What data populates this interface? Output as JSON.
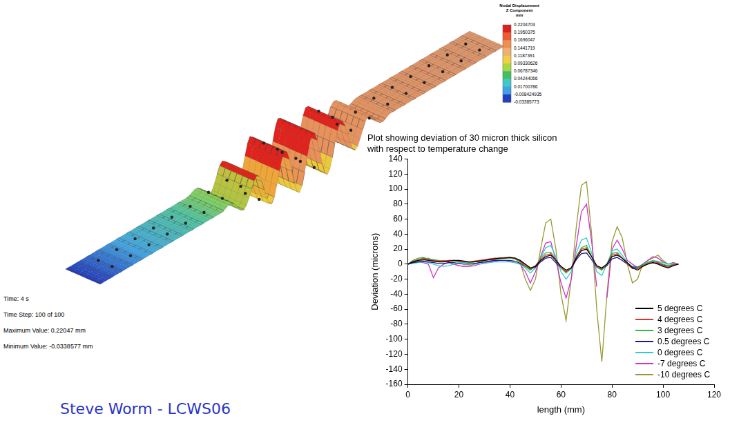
{
  "chart_data": {
    "type": "line",
    "title": "Plot showing deviation of 30 micron thick silicon with respect to temperature change",
    "x_label": "length (mm)",
    "y_label": "Deviation (microns)",
    "x": [
      0,
      2,
      4,
      6,
      8,
      10,
      12,
      14,
      16,
      18,
      20,
      22,
      24,
      26,
      28,
      30,
      32,
      34,
      36,
      38,
      40,
      42,
      44,
      46,
      48,
      50,
      52,
      54,
      56,
      58,
      60,
      62,
      64,
      66,
      68,
      70,
      72,
      74,
      76,
      78,
      80,
      82,
      84,
      86,
      88,
      90,
      92,
      94,
      96,
      98,
      100,
      102,
      104,
      106
    ],
    "series": [
      {
        "name": "5 degrees C",
        "color": "#000000",
        "values": [
          0,
          3,
          5,
          6,
          5,
          4,
          3,
          3,
          4,
          5,
          5,
          4,
          3,
          3,
          4,
          5,
          6,
          7,
          8,
          8,
          9,
          8,
          5,
          0,
          -5,
          -3,
          5,
          10,
          12,
          5,
          -3,
          -8,
          -5,
          8,
          18,
          20,
          10,
          -2,
          -5,
          0,
          10,
          12,
          8,
          2,
          -5,
          -8,
          -3,
          0,
          2,
          0,
          -3,
          -5,
          -2,
          0
        ]
      },
      {
        "name": "4 degrees C",
        "color": "#e03030",
        "values": [
          0,
          4,
          6,
          8,
          6,
          5,
          4,
          4,
          5,
          5,
          4,
          3,
          3,
          4,
          5,
          6,
          7,
          8,
          8,
          9,
          9,
          8,
          4,
          -2,
          -6,
          -2,
          6,
          12,
          14,
          6,
          -4,
          -10,
          -5,
          10,
          20,
          22,
          10,
          -3,
          -6,
          0,
          12,
          14,
          8,
          0,
          -6,
          -6,
          -2,
          1,
          3,
          2,
          -2,
          -4,
          -1,
          0
        ]
      },
      {
        "name": "3 degrees C",
        "color": "#33bb33",
        "values": [
          0,
          5,
          8,
          9,
          7,
          6,
          5,
          4,
          4,
          4,
          3,
          3,
          2,
          3,
          4,
          5,
          6,
          7,
          8,
          8,
          8,
          7,
          3,
          -3,
          -8,
          -3,
          8,
          15,
          16,
          6,
          -5,
          -12,
          -6,
          10,
          22,
          25,
          10,
          -4,
          -8,
          0,
          14,
          16,
          8,
          0,
          -5,
          -5,
          -1,
          2,
          4,
          3,
          0,
          -2,
          0,
          0
        ]
      },
      {
        "name": "0.5 degrees C",
        "color": "#1a1a8c",
        "values": [
          0,
          2,
          3,
          4,
          3,
          2,
          1,
          1,
          2,
          2,
          1,
          0,
          0,
          1,
          2,
          3,
          4,
          5,
          5,
          5,
          5,
          4,
          1,
          -3,
          -7,
          -4,
          3,
          8,
          9,
          2,
          -5,
          -10,
          -6,
          6,
          14,
          15,
          6,
          -4,
          -7,
          -2,
          7,
          9,
          5,
          0,
          -4,
          -4,
          -1,
          1,
          2,
          1,
          -1,
          -2,
          -1,
          0
        ]
      },
      {
        "name": "0 degrees C",
        "color": "#33cccc",
        "values": [
          0,
          1,
          2,
          3,
          2,
          0,
          -2,
          -3,
          -2,
          0,
          2,
          2,
          1,
          0,
          0,
          1,
          2,
          3,
          3,
          3,
          3,
          2,
          0,
          -5,
          -12,
          -5,
          8,
          22,
          25,
          10,
          -10,
          -20,
          -10,
          15,
          32,
          35,
          15,
          -10,
          -15,
          0,
          18,
          20,
          12,
          2,
          -3,
          -5,
          0,
          3,
          5,
          4,
          2,
          0,
          1,
          0
        ]
      },
      {
        "name": "-7 degrees C",
        "color": "#cc33cc",
        "values": [
          0,
          2,
          3,
          2,
          0,
          -18,
          -5,
          0,
          2,
          0,
          -2,
          -3,
          -3,
          -2,
          0,
          2,
          3,
          4,
          5,
          5,
          4,
          2,
          0,
          -10,
          -25,
          -10,
          10,
          28,
          30,
          5,
          -25,
          -45,
          -20,
          25,
          70,
          80,
          30,
          -30,
          null,
          -45,
          20,
          32,
          20,
          5,
          0,
          -5,
          0,
          5,
          10,
          8,
          3,
          0,
          2,
          0
        ]
      },
      {
        "name": "-10 degrees C",
        "color": "#999933",
        "values": [
          0,
          2,
          4,
          6,
          8,
          5,
          3,
          5,
          3,
          0,
          -2,
          -3,
          -2,
          0,
          2,
          3,
          4,
          6,
          7,
          8,
          8,
          7,
          2,
          -20,
          -35,
          -20,
          20,
          55,
          60,
          20,
          -40,
          -75,
          -20,
          50,
          105,
          110,
          40,
          -60,
          -130,
          -40,
          30,
          50,
          35,
          0,
          -25,
          -20,
          0,
          5,
          8,
          12,
          5,
          0,
          2,
          0
        ]
      }
    ],
    "xlim": [
      0,
      120
    ],
    "xticks": [
      0,
      20,
      40,
      60,
      80,
      100,
      120
    ],
    "ylim": [
      -160,
      140
    ],
    "yticks": [
      -160,
      -140,
      -120,
      -100,
      -80,
      -60,
      -40,
      -20,
      0,
      20,
      40,
      60,
      80,
      100,
      120,
      140
    ],
    "grid": false,
    "legend": "lower right"
  },
  "fea_plot": {
    "colorbar": {
      "title": [
        "Nodal Displacement",
        "Z Component",
        "mm"
      ],
      "range": [
        -0.03385773,
        0.2204703
      ],
      "ticks": [
        0.2204703,
        0.1950375,
        0.1696047,
        0.1441719,
        0.1187391,
        0.09330626,
        0.06787346,
        0.04244066,
        0.01700786,
        -0.008424935,
        -0.03385773
      ]
    },
    "info": [
      "Time: 4 s",
      "Time Step: 100 of 100",
      "Maximum Value: 0.22047 mm",
      "Minimum Value: -0.0338577 mm"
    ]
  },
  "caption": "Steve Worm - LCWS06"
}
